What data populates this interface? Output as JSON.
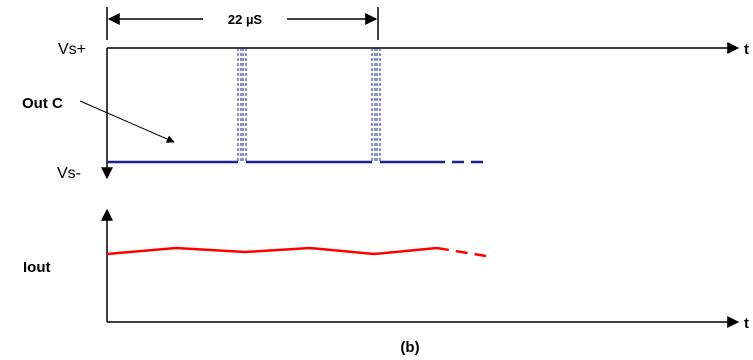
{
  "labels": {
    "measure": "22 µS",
    "vs_plus": "Vs+",
    "vs_minus": "Vs-",
    "out_c": "Out C",
    "iout": "Iout",
    "t_top": "t",
    "t_bottom": "t",
    "caption": "(b)"
  },
  "colors": {
    "axis": "#000000",
    "out_c_trace": "#1f1f8f",
    "iout_trace": "#ff0000",
    "pulse": "#1f1f8f"
  }
}
